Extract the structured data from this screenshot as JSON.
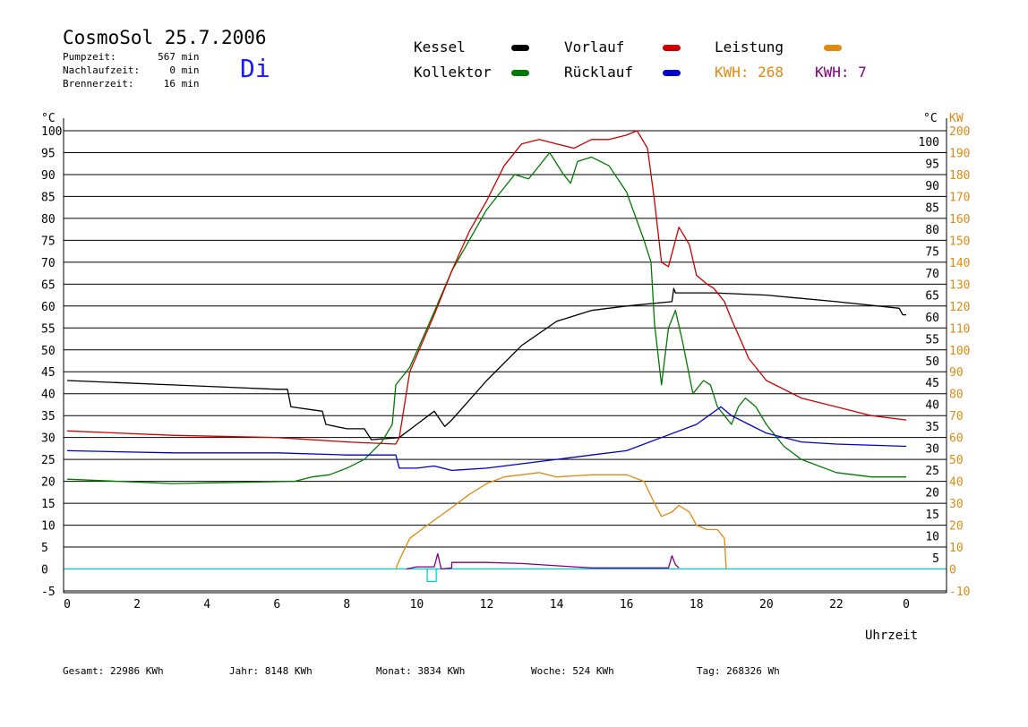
{
  "header": {
    "title": "CosmoSol 25.7.2006",
    "day": "Di",
    "stats": [
      {
        "label": "Pumpzeit:",
        "value": "567",
        "unit": "min"
      },
      {
        "label": "Nachlaufzeit:",
        "value": "0",
        "unit": "min"
      },
      {
        "label": "Brennerzeit:",
        "value": "16",
        "unit": "min"
      }
    ]
  },
  "legend": {
    "kessel": "Kessel",
    "kollektor": "Kollektor",
    "vorlauf": "Vorlauf",
    "ruecklauf": "Rücklauf",
    "leistung": "Leistung",
    "kwh1": "KWH: 268",
    "kwh2": "KWH: 7"
  },
  "colors": {
    "kessel": "#000000",
    "kollektor": "#007a00",
    "vorlauf": "#cc0000",
    "ruecklauf": "#0000cc",
    "leistung": "#e08a10",
    "kwh2": "#800080",
    "baseline": "#00cccc"
  },
  "footer": {
    "gesamt": "Gesamt:  22986 KWh",
    "jahr": "Jahr:   8148 KWh",
    "monat": "Monat:   3834 KWh",
    "woche": "Woche:    524 KWh",
    "tag": "Tag: 268326 Wh"
  },
  "chart_data": {
    "type": "line",
    "xlabel": "Uhrzeit",
    "ylabel_left": "°C",
    "ylabel_right_temp": "°C",
    "ylabel_right_power": "KW",
    "xlim": [
      0,
      24
    ],
    "ylim": [
      -5,
      100
    ],
    "xticks": [
      "0",
      "2",
      "4",
      "6",
      "8",
      "10",
      "12",
      "14",
      "16",
      "18",
      "20",
      "22",
      "0"
    ],
    "yticks_left": [
      "100",
      "95",
      "90",
      "85",
      "80",
      "75",
      "70",
      "65",
      "60",
      "55",
      "50",
      "45",
      "40",
      "35",
      "30",
      "25",
      "20",
      "15",
      "10",
      "5",
      "0",
      "-5"
    ],
    "yticks_right_temp": [
      "100",
      "95",
      "90",
      "85",
      "80",
      "75",
      "70",
      "65",
      "60",
      "55",
      "50",
      "45",
      "40",
      "35",
      "30",
      "25",
      "20",
      "15",
      "10",
      "5"
    ],
    "yticks_right_power": [
      "200",
      "190",
      "180",
      "170",
      "160",
      "150",
      "140",
      "130",
      "120",
      "110",
      "100",
      "90",
      "80",
      "70",
      "60",
      "50",
      "40",
      "30",
      "20",
      "10",
      "0",
      "-10"
    ],
    "grid": true,
    "series": [
      {
        "name": "Kessel",
        "color_key": "kessel",
        "points": [
          [
            0,
            43
          ],
          [
            3,
            42
          ],
          [
            6,
            41
          ],
          [
            6.3,
            41
          ],
          [
            6.4,
            37
          ],
          [
            7.3,
            36
          ],
          [
            7.4,
            33
          ],
          [
            8,
            32
          ],
          [
            8.5,
            32
          ],
          [
            8.7,
            29.5
          ],
          [
            9.5,
            30
          ],
          [
            10,
            33
          ],
          [
            10.5,
            36
          ],
          [
            10.8,
            32.5
          ],
          [
            11,
            34
          ],
          [
            12,
            43
          ],
          [
            13,
            51
          ],
          [
            14,
            56.5
          ],
          [
            15,
            59
          ],
          [
            16,
            60
          ],
          [
            17.3,
            61
          ],
          [
            17.35,
            64
          ],
          [
            17.4,
            63
          ],
          [
            18.5,
            63
          ],
          [
            20,
            62.5
          ],
          [
            22,
            61
          ],
          [
            23.8,
            59.5
          ],
          [
            23.9,
            58
          ],
          [
            24,
            58
          ]
        ]
      },
      {
        "name": "Kollektor",
        "color_key": "kollektor",
        "points": [
          [
            0,
            20.5
          ],
          [
            3,
            19.5
          ],
          [
            6.5,
            20
          ],
          [
            7,
            21
          ],
          [
            7.5,
            21.5
          ],
          [
            8,
            23
          ],
          [
            8.5,
            25
          ],
          [
            9,
            29
          ],
          [
            9.3,
            33
          ],
          [
            9.4,
            42
          ],
          [
            9.8,
            46
          ],
          [
            10.3,
            55
          ],
          [
            11,
            68
          ],
          [
            11.5,
            75
          ],
          [
            12,
            82
          ],
          [
            12.5,
            87
          ],
          [
            12.8,
            90
          ],
          [
            13.2,
            89
          ],
          [
            13.4,
            91
          ],
          [
            13.8,
            95
          ],
          [
            14.2,
            90
          ],
          [
            14.4,
            88
          ],
          [
            14.6,
            93
          ],
          [
            15,
            94
          ],
          [
            15.5,
            92
          ],
          [
            16,
            86
          ],
          [
            16.5,
            75
          ],
          [
            16.7,
            70
          ],
          [
            16.8,
            56
          ],
          [
            17,
            42
          ],
          [
            17.2,
            55
          ],
          [
            17.4,
            59
          ],
          [
            17.6,
            52
          ],
          [
            17.8,
            44
          ],
          [
            17.9,
            40
          ],
          [
            18,
            41
          ],
          [
            18.2,
            43
          ],
          [
            18.4,
            42
          ],
          [
            18.6,
            37
          ],
          [
            18.8,
            35
          ],
          [
            19,
            33
          ],
          [
            19.2,
            37
          ],
          [
            19.4,
            39
          ],
          [
            19.7,
            37
          ],
          [
            20,
            33
          ],
          [
            20.5,
            28
          ],
          [
            21,
            25
          ],
          [
            22,
            22
          ],
          [
            23,
            21
          ],
          [
            24,
            21
          ]
        ]
      },
      {
        "name": "Vorlauf",
        "color_key": "vorlauf",
        "points": [
          [
            0,
            31.5
          ],
          [
            3,
            30.5
          ],
          [
            6,
            30
          ],
          [
            8,
            29
          ],
          [
            9.4,
            28.5
          ],
          [
            9.5,
            30
          ],
          [
            9.8,
            45
          ],
          [
            10.5,
            58
          ],
          [
            11,
            68
          ],
          [
            11.5,
            77
          ],
          [
            12,
            84
          ],
          [
            12.5,
            92
          ],
          [
            13,
            97
          ],
          [
            13.5,
            98
          ],
          [
            14,
            97
          ],
          [
            14.5,
            96
          ],
          [
            15,
            98
          ],
          [
            15.5,
            98
          ],
          [
            16,
            99
          ],
          [
            16.3,
            100
          ],
          [
            16.6,
            96
          ],
          [
            16.8,
            84
          ],
          [
            17,
            70
          ],
          [
            17.2,
            69
          ],
          [
            17.5,
            78
          ],
          [
            17.8,
            74
          ],
          [
            18,
            67
          ],
          [
            18.3,
            65
          ],
          [
            18.5,
            64
          ],
          [
            18.8,
            61
          ],
          [
            19,
            57
          ],
          [
            19.5,
            48
          ],
          [
            20,
            43
          ],
          [
            21,
            39
          ],
          [
            22,
            37
          ],
          [
            23,
            35
          ],
          [
            24,
            34
          ]
        ]
      },
      {
        "name": "Rücklauf",
        "color_key": "ruecklauf",
        "points": [
          [
            0,
            27
          ],
          [
            3,
            26.5
          ],
          [
            6,
            26.5
          ],
          [
            8,
            26
          ],
          [
            9.4,
            26
          ],
          [
            9.5,
            23
          ],
          [
            10,
            23
          ],
          [
            10.5,
            23.5
          ],
          [
            11,
            22.5
          ],
          [
            12,
            23
          ],
          [
            13,
            24
          ],
          [
            14,
            25
          ],
          [
            15,
            26
          ],
          [
            16,
            27
          ],
          [
            17,
            30
          ],
          [
            18,
            33
          ],
          [
            18.7,
            37
          ],
          [
            19,
            35
          ],
          [
            19.5,
            33
          ],
          [
            20,
            31
          ],
          [
            21,
            29
          ],
          [
            22,
            28.5
          ],
          [
            24,
            28
          ]
        ]
      },
      {
        "name": "Leistung",
        "axis": "power",
        "color_key": "leistung",
        "points": [
          [
            9.4,
            0
          ],
          [
            9.5,
            4
          ],
          [
            9.8,
            14
          ],
          [
            10.3,
            20
          ],
          [
            11,
            28
          ],
          [
            11.5,
            34
          ],
          [
            12,
            39
          ],
          [
            12.5,
            42
          ],
          [
            13,
            43
          ],
          [
            13.5,
            44
          ],
          [
            14,
            42
          ],
          [
            15,
            43
          ],
          [
            16,
            43
          ],
          [
            16.5,
            40
          ],
          [
            16.8,
            30
          ],
          [
            17,
            24
          ],
          [
            17.3,
            26
          ],
          [
            17.5,
            29
          ],
          [
            17.8,
            26
          ],
          [
            18,
            20
          ],
          [
            18.3,
            18
          ],
          [
            18.6,
            18
          ],
          [
            18.8,
            14
          ],
          [
            18.85,
            0
          ]
        ]
      },
      {
        "name": "KWH2",
        "axis": "power",
        "color_key": "kwh2",
        "points": [
          [
            9.7,
            0
          ],
          [
            10,
            1
          ],
          [
            10.5,
            1
          ],
          [
            10.6,
            7
          ],
          [
            10.7,
            0
          ],
          [
            11,
            0.5
          ],
          [
            11,
            3
          ],
          [
            12,
            3
          ],
          [
            13,
            2.5
          ],
          [
            14,
            1.5
          ],
          [
            15,
            0.5
          ],
          [
            16,
            0.5
          ],
          [
            17.2,
            0.5
          ],
          [
            17.3,
            6
          ],
          [
            17.4,
            2
          ],
          [
            17.5,
            0.5
          ]
        ]
      }
    ]
  }
}
